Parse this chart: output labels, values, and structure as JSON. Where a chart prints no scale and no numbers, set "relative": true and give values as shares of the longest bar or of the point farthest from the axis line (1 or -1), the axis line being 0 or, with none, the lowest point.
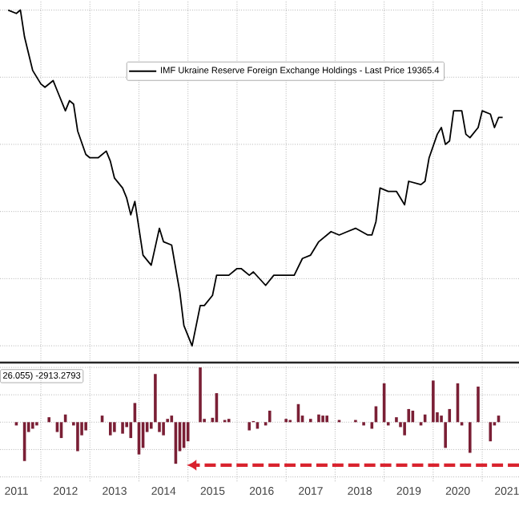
{
  "chart_data": [
    {
      "type": "line",
      "relative": true,
      "grid": true,
      "legend": "top",
      "tick_labels": false,
      "series": [
        {
          "name": "IMF Ukraine Reserve Foreign Exchange Holdings - Last Price 19365.4",
          "color": "#000000",
          "x": [
            "2011-05",
            "2011-07",
            "2011-08",
            "2011-09",
            "2011-10",
            "2011-11",
            "2012-01",
            "2012-02",
            "2012-04",
            "2012-05",
            "2012-07",
            "2012-08",
            "2012-09",
            "2012-10",
            "2012-12",
            "2013-01",
            "2013-03",
            "2013-05",
            "2013-06",
            "2013-07",
            "2013-09",
            "2013-10",
            "2013-11",
            "2013-12",
            "2014-02",
            "2014-04",
            "2014-06",
            "2014-07",
            "2014-09",
            "2014-11",
            "2014-12",
            "2015-02",
            "2015-04",
            "2015-05",
            "2015-07",
            "2015-08",
            "2015-11",
            "2016-01",
            "2016-02",
            "2016-04",
            "2016-05",
            "2016-08",
            "2016-10",
            "2016-11",
            "2017-01",
            "2017-03",
            "2017-05",
            "2017-07",
            "2017-09",
            "2017-12",
            "2018-02",
            "2018-04",
            "2018-06",
            "2018-09",
            "2018-10",
            "2018-11",
            "2018-12",
            "2019-02",
            "2019-04",
            "2019-06",
            "2019-07",
            "2019-10",
            "2019-11",
            "2019-12",
            "2020-02",
            "2020-03",
            "2020-04",
            "2020-05",
            "2020-06",
            "2020-08",
            "2020-09",
            "2020-10",
            "2020-12",
            "2021-01",
            "2021-03",
            "2021-04",
            "2021-05",
            "2021-06"
          ],
          "values": [
            1.0,
            0.99,
            1.0,
            0.92,
            0.87,
            0.82,
            0.78,
            0.77,
            0.79,
            0.76,
            0.7,
            0.73,
            0.72,
            0.64,
            0.57,
            0.56,
            0.56,
            0.58,
            0.55,
            0.5,
            0.47,
            0.44,
            0.39,
            0.43,
            0.27,
            0.24,
            0.35,
            0.31,
            0.3,
            0.16,
            0.06,
            0.0,
            0.12,
            0.12,
            0.15,
            0.21,
            0.21,
            0.23,
            0.23,
            0.21,
            0.22,
            0.18,
            0.21,
            0.21,
            0.21,
            0.21,
            0.26,
            0.27,
            0.31,
            0.34,
            0.33,
            0.34,
            0.35,
            0.33,
            0.33,
            0.37,
            0.47,
            0.46,
            0.46,
            0.42,
            0.49,
            0.48,
            0.49,
            0.56,
            0.63,
            0.65,
            0.6,
            0.61,
            0.7,
            0.7,
            0.63,
            0.62,
            0.65,
            0.7,
            0.69,
            0.65,
            0.68,
            0.68
          ]
        }
      ],
      "xlim": [
        "2011-03",
        "2021-10"
      ],
      "xticks": [
        {
          "value": "2012",
          "label": null
        },
        {
          "value": "2013",
          "label": null
        },
        {
          "value": "2014",
          "label": null
        },
        {
          "value": "2015",
          "label": null
        },
        {
          "value": "2016",
          "label": null
        },
        {
          "value": "2017",
          "label": null
        },
        {
          "value": "2018",
          "label": null
        },
        {
          "value": "2019",
          "label": null
        },
        {
          "value": "2020",
          "label": null
        },
        {
          "value": "2021",
          "label": null
        }
      ]
    },
    {
      "type": "bar",
      "relative": true,
      "grid": true,
      "tick_labels": "x",
      "annotations": [
        "26.055)  -2913.2793"
      ],
      "series": [
        {
          "color": "#7a1f35",
          "x": [
            "2011-07",
            "2011-09",
            "2011-10",
            "2011-11",
            "2011-12",
            "2012-03",
            "2012-05",
            "2012-06",
            "2012-07",
            "2012-09",
            "2012-10",
            "2012-11",
            "2012-12",
            "2013-04",
            "2013-06",
            "2013-07",
            "2013-09",
            "2013-10",
            "2013-11",
            "2013-12",
            "2014-01",
            "2014-02",
            "2014-03",
            "2014-04",
            "2014-05",
            "2014-06",
            "2014-07",
            "2014-08",
            "2014-09",
            "2014-10",
            "2014-11",
            "2014-12",
            "2015-01",
            "2015-04",
            "2015-05",
            "2015-07",
            "2015-08",
            "2015-10",
            "2015-11",
            "2016-04",
            "2016-05",
            "2016-06",
            "2016-08",
            "2016-09",
            "2017-01",
            "2017-02",
            "2017-04",
            "2017-05",
            "2017-07",
            "2017-09",
            "2017-10",
            "2017-11",
            "2018-02",
            "2018-06",
            "2018-08",
            "2018-10",
            "2018-11",
            "2019-01",
            "2019-02",
            "2019-04",
            "2019-05",
            "2019-06",
            "2019-07",
            "2019-08",
            "2019-10",
            "2019-11",
            "2020-01",
            "2020-02",
            "2020-03",
            "2020-04",
            "2020-05",
            "2020-07",
            "2020-08",
            "2020-10",
            "2020-12",
            "2021-03",
            "2021-04",
            "2021-05"
          ],
          "values": [
            -0.06,
            -0.71,
            -0.18,
            -0.12,
            -0.06,
            0.09,
            -0.18,
            -0.29,
            0.14,
            -0.06,
            -0.53,
            -0.24,
            -0.15,
            0.12,
            -0.24,
            -0.18,
            -0.21,
            -0.09,
            -0.29,
            0.35,
            -0.59,
            -0.47,
            -0.18,
            -0.12,
            0.88,
            -0.18,
            -0.24,
            0.06,
            0.12,
            -0.76,
            -0.53,
            -0.47,
            -0.35,
            1.0,
            0.06,
            0.08,
            0.53,
            0.04,
            0.06,
            -0.15,
            0.02,
            -0.12,
            -0.06,
            0.21,
            0.06,
            0.04,
            0.33,
            0.12,
            0.06,
            0.14,
            0.12,
            0.12,
            0.04,
            0.04,
            -0.06,
            -0.12,
            0.29,
            0.71,
            -0.06,
            0.09,
            -0.09,
            -0.24,
            0.24,
            0.21,
            -0.06,
            0.14,
            0.76,
            0.18,
            0.12,
            -0.47,
            0.24,
            0.71,
            -0.06,
            -0.56,
            0.65,
            -0.35,
            -0.06,
            0.12
          ]
        }
      ],
      "xlim": [
        "2011-03",
        "2021-10"
      ],
      "xticks": [
        {
          "value": "2011-07-02",
          "label": "2011"
        },
        {
          "value": "2012",
          "label": null
        },
        {
          "value": "2012-07-02",
          "label": "2012"
        },
        {
          "value": "2013",
          "label": null
        },
        {
          "value": "2013-07-02",
          "label": "2013"
        },
        {
          "value": "2014",
          "label": null
        },
        {
          "value": "2014-07-02",
          "label": "2014"
        },
        {
          "value": "2015",
          "label": null
        },
        {
          "value": "2015-07-02",
          "label": "2015"
        },
        {
          "value": "2016",
          "label": null
        },
        {
          "value": "2016-07-02",
          "label": "2016"
        },
        {
          "value": "2017",
          "label": null
        },
        {
          "value": "2017-07-02",
          "label": "2017"
        },
        {
          "value": "2018",
          "label": null
        },
        {
          "value": "2018-07-02",
          "label": "2018"
        },
        {
          "value": "2019",
          "label": null
        },
        {
          "value": "2019-07-02",
          "label": "2019"
        },
        {
          "value": "2020",
          "label": null
        },
        {
          "value": "2020-07-02",
          "label": "2020"
        },
        {
          "value": "2021",
          "label": null
        },
        {
          "value": "2021-07-02",
          "label": "2021"
        }
      ]
    }
  ]
}
